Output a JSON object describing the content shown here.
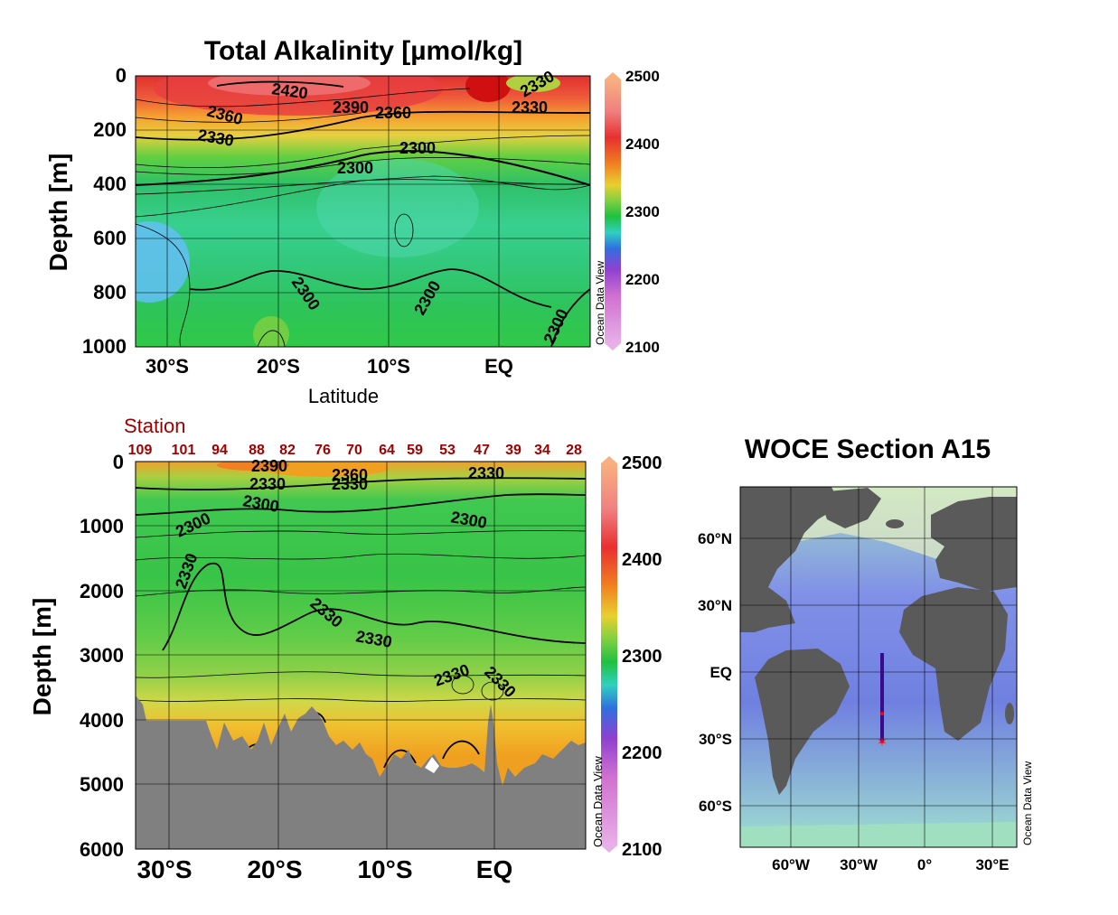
{
  "top_panel": {
    "title": "Total Alkalinity [µmol/kg]",
    "ylabel": "Depth [m]",
    "xlabel": "Latitude",
    "watermark": "Ocean Data View"
  },
  "bottom_panel": {
    "ylabel": "Depth [m]",
    "station_label": "Station",
    "watermark": "Ocean Data View"
  },
  "map_panel": {
    "title": "WOCE Section A15",
    "watermark": "Ocean Data View",
    "lat_labels": [
      "60°N",
      "30°N",
      "EQ",
      "30°S",
      "60°S"
    ],
    "lon_labels": [
      "60°W",
      "30°W",
      "0°",
      "30°E"
    ]
  },
  "colors": {
    "land": "#5a5a5a",
    "bottom_fill": "#808080",
    "section_line": "#3a0a8a",
    "marker": "#ff0000",
    "station_text": "#a00000"
  },
  "chart_data": [
    {
      "type": "heatmap",
      "title": "Total Alkalinity [µmol/kg]",
      "xlabel": "Latitude",
      "ylabel": "Depth [m]",
      "x_tick_labels": [
        "30°S",
        "20°S",
        "10°S",
        "EQ"
      ],
      "y_tick_labels": [
        "0",
        "200",
        "400",
        "600",
        "800",
        "1000"
      ],
      "ylim": [
        1000,
        0
      ],
      "colorbar": {
        "ticks": [
          "2500",
          "2400",
          "2300",
          "2200",
          "2100"
        ],
        "range": [
          2100,
          2500
        ]
      },
      "contour_labels": [
        "2420",
        "2390",
        "2360",
        "2360",
        "2330",
        "2330",
        "2330",
        "2300",
        "2300",
        "2300",
        "2300",
        "2300"
      ]
    },
    {
      "type": "heatmap",
      "xlabel": "",
      "ylabel": "Depth [m]",
      "x_tick_labels": [
        "30°S",
        "20°S",
        "10°S",
        "EQ"
      ],
      "y_tick_labels": [
        "0",
        "1000",
        "2000",
        "3000",
        "4000",
        "5000",
        "6000"
      ],
      "ylim": [
        6000,
        0
      ],
      "colorbar": {
        "ticks": [
          "2500",
          "2400",
          "2300",
          "2200",
          "2100"
        ],
        "range": [
          2100,
          2500
        ]
      },
      "stations": [
        "109",
        "101",
        "94",
        "88",
        "82",
        "76",
        "70",
        "64",
        "59",
        "53",
        "47",
        "39",
        "34",
        "28"
      ],
      "contour_labels": [
        "2390",
        "2360",
        "2330",
        "2330",
        "2330",
        "2300",
        "2300",
        "2300",
        "2330",
        "2330",
        "2330",
        "2330",
        "2330"
      ]
    }
  ]
}
